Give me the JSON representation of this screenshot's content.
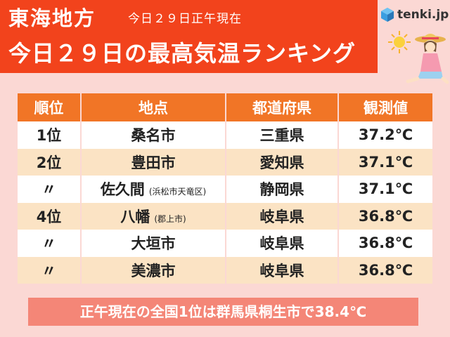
{
  "header": {
    "region": "東海地方",
    "as_of": "今日２９日正午現在",
    "headline": "今日２９日の最高気温ランキング",
    "brand": "tenki.jp"
  },
  "table": {
    "columns": [
      "順位",
      "地点",
      "都道府県",
      "観測値"
    ],
    "rows": [
      {
        "rank": "1位",
        "location": "桑名市",
        "note": "",
        "prefecture": "三重県",
        "value": "37.2℃"
      },
      {
        "rank": "2位",
        "location": "豊田市",
        "note": "",
        "prefecture": "愛知県",
        "value": "37.1℃"
      },
      {
        "rank": "〃",
        "location": "佐久間",
        "note": "(浜松市天竜区)",
        "prefecture": "静岡県",
        "value": "37.1℃"
      },
      {
        "rank": "4位",
        "location": "八幡",
        "note": "(郡上市)",
        "prefecture": "岐阜県",
        "value": "36.8℃"
      },
      {
        "rank": "〃",
        "location": "大垣市",
        "note": "",
        "prefecture": "岐阜県",
        "value": "36.8℃"
      },
      {
        "rank": "〃",
        "location": "美濃市",
        "note": "",
        "prefecture": "岐阜県",
        "value": "36.8℃"
      }
    ]
  },
  "footer": {
    "text": "正午現在の全国1位は群馬県桐生市で38.4℃"
  },
  "colors": {
    "title_bg": "#f2431c",
    "header_bg": "#f17526",
    "row_alt": "#fbe3c4",
    "page_bg": "#fbd8d4",
    "footer_bg": "#f48677"
  }
}
